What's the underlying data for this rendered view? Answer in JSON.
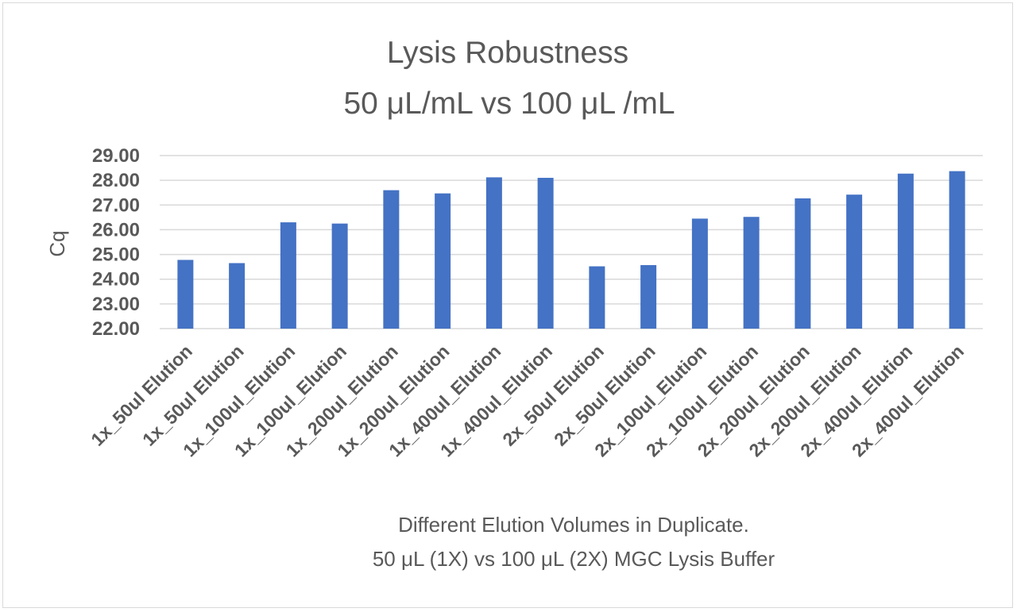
{
  "chart_data": {
    "type": "bar",
    "title": [
      "Lysis Robustness",
      "50 μL/mL vs 100 μL /mL"
    ],
    "xlabel": [
      "Different Elution Volumes in Duplicate.",
      "50 μL (1X) vs 100 μL  (2X) MGC Lysis Buffer"
    ],
    "ylabel": "Cq",
    "ylim": [
      22,
      29
    ],
    "yticks": [
      "22.00",
      "23.00",
      "24.00",
      "25.00",
      "26.00",
      "27.00",
      "28.00",
      "29.00"
    ],
    "grid": true,
    "categories": [
      "1x_50ul Elution",
      "1x_50ul Elution",
      "1x_100ul_Elution",
      "1x_100ul_Elution",
      "1x_200ul_Elution",
      "1x_200ul_Elution",
      "1x_400ul_Elution",
      "1x_400ul_Elution",
      "2x_50ul Elution",
      "2x_50ul Elution",
      "2x_100ul_Elution",
      "2x_100ul_Elution",
      "2x_200ul_Elution",
      "2x_200ul_Elution",
      "2x_400ul_Elution",
      "2x_400ul_Elution"
    ],
    "values": [
      24.78,
      24.65,
      26.3,
      26.25,
      27.6,
      27.47,
      28.12,
      28.1,
      24.52,
      24.57,
      26.45,
      26.52,
      27.27,
      27.42,
      28.27,
      28.37
    ],
    "colors": {
      "bar": "#4472c4",
      "grid": "#d9d9d9",
      "text": "#595959"
    }
  }
}
